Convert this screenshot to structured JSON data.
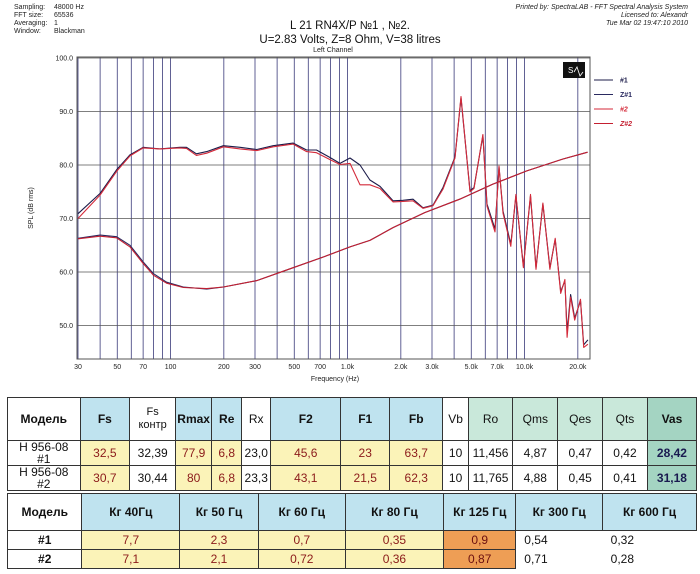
{
  "meta": {
    "rows": [
      {
        "key": "Sampling:",
        "value": "48000 Hz"
      },
      {
        "key": "FFT size:",
        "value": "65536"
      },
      {
        "key": "Averaging:",
        "value": "1"
      },
      {
        "key": "Window:",
        "value": "Blackman"
      }
    ]
  },
  "title": {
    "line1": "L 21 RN4X/P  №1 , №2.",
    "line2": "U=2.83 Volts,   Z=8 Ohm,    V=38 litres"
  },
  "printed": {
    "line1": "Printed by: SpectraLAB - FFT Spectral Analysis System",
    "line2": "Licensed to: Alexandr",
    "line3": "Tue Mar 02 19:47:10 2010"
  },
  "chart_data": {
    "type": "line",
    "title": "Left Channel",
    "xlabel": "Frequency (Hz)",
    "ylabel": "SPL (dB rms)",
    "xscale": "log",
    "xlim": [
      30,
      23000
    ],
    "ylim": [
      43.9,
      100
    ],
    "grid": true,
    "legend_placement": "right-outside-top",
    "yticks": [
      "100.0",
      "90.0",
      "80.0",
      "70.0",
      "60.0",
      "50.0"
    ],
    "ytick_values": [
      100,
      90,
      80,
      70,
      60,
      50
    ],
    "xticks": [
      {
        "v": 30,
        "label": "30"
      },
      {
        "v": 50,
        "label": "50"
      },
      {
        "v": 70,
        "label": "70"
      },
      {
        "v": 100,
        "label": "100"
      },
      {
        "v": 200,
        "label": "200"
      },
      {
        "v": 300,
        "label": "300"
      },
      {
        "v": 500,
        "label": "500"
      },
      {
        "v": 700,
        "label": "700"
      },
      {
        "v": 1000,
        "label": "1.0k"
      },
      {
        "v": 2000,
        "label": "2.0k"
      },
      {
        "v": 3000,
        "label": "3.0k"
      },
      {
        "v": 5000,
        "label": "5.0k"
      },
      {
        "v": 7000,
        "label": "7.0k"
      },
      {
        "v": 10000,
        "label": "10.0k"
      },
      {
        "v": 20000,
        "label": "20.0k"
      }
    ],
    "xgrid": [
      30,
      40,
      50,
      60,
      70,
      80,
      90,
      100,
      200,
      300,
      400,
      500,
      600,
      700,
      800,
      900,
      1000,
      2000,
      3000,
      4000,
      5000,
      6000,
      7000,
      8000,
      9000,
      10000,
      20000
    ],
    "series": [
      {
        "name": "#1",
        "color": "#1c1c4a",
        "points": [
          [
            30,
            70.9
          ],
          [
            40,
            74.7
          ],
          [
            49.6,
            79.1
          ],
          [
            59,
            81.9
          ],
          [
            70,
            83.3
          ],
          [
            87,
            83
          ],
          [
            113,
            83.3
          ],
          [
            123,
            83.3
          ],
          [
            140,
            82.1
          ],
          [
            160,
            82.5
          ],
          [
            199,
            83.6
          ],
          [
            247,
            83.3
          ],
          [
            307,
            82.9
          ],
          [
            380,
            83.6
          ],
          [
            493,
            84.1
          ],
          [
            587,
            82.8
          ],
          [
            668,
            82.8
          ],
          [
            796,
            81.4
          ],
          [
            906,
            80.3
          ],
          [
            1032,
            81.3
          ],
          [
            1176,
            80
          ],
          [
            1338,
            77.2
          ],
          [
            1525,
            76
          ],
          [
            1806,
            73.3
          ],
          [
            2058,
            73.4
          ],
          [
            2343,
            73.6
          ],
          [
            2668,
            72
          ],
          [
            3038,
            72.5
          ],
          [
            3460,
            75.8
          ],
          [
            4047,
            81.5
          ],
          [
            4377,
            92.5
          ],
          [
            4920,
            75.2
          ],
          [
            5180,
            75.8
          ],
          [
            5820,
            85.5
          ],
          [
            6138,
            72.7
          ],
          [
            6810,
            68
          ],
          [
            7170,
            79.6
          ],
          [
            7560,
            71.4
          ],
          [
            8360,
            65.2
          ],
          [
            8940,
            74.2
          ],
          [
            9850,
            61.1
          ],
          [
            10800,
            74.2
          ],
          [
            11600,
            60.8
          ],
          [
            12700,
            72.7
          ],
          [
            13900,
            60.8
          ],
          [
            14900,
            66.1
          ],
          [
            16000,
            56.4
          ],
          [
            16900,
            58.3
          ],
          [
            17400,
            48.8
          ],
          [
            18200,
            55.8
          ],
          [
            19200,
            51.4
          ],
          [
            20700,
            54.6
          ],
          [
            21600,
            46.4
          ],
          [
            22800,
            47.3
          ]
        ]
      },
      {
        "name": "Z#1",
        "color": "#2a2a60",
        "points": [
          [
            30,
            66.3
          ],
          [
            40,
            66.9
          ],
          [
            49.6,
            66.6
          ],
          [
            59,
            65
          ],
          [
            70,
            61.9
          ],
          [
            80,
            59.7
          ],
          [
            95,
            58.1
          ],
          [
            118,
            57.2
          ],
          [
            160,
            56.8
          ],
          [
            199,
            57.2
          ],
          [
            307,
            58.4
          ],
          [
            473,
            60.6
          ],
          [
            729,
            62.8
          ],
          [
            1032,
            64.7
          ],
          [
            1338,
            65.9
          ],
          [
            1806,
            68.3
          ],
          [
            2727,
            71.1
          ],
          [
            4300,
            73.6
          ],
          [
            6600,
            76.4
          ],
          [
            10300,
            78.9
          ],
          [
            16400,
            81.1
          ],
          [
            22700,
            82.4
          ]
        ]
      },
      {
        "name": "#2",
        "color": "#d42a3a",
        "points": [
          [
            30,
            70
          ],
          [
            40,
            74.4
          ],
          [
            49.6,
            78.8
          ],
          [
            59,
            81.7
          ],
          [
            70,
            83.2
          ],
          [
            87,
            83
          ],
          [
            113,
            83.2
          ],
          [
            123,
            83.1
          ],
          [
            140,
            81.8
          ],
          [
            160,
            82.2
          ],
          [
            199,
            83.4
          ],
          [
            247,
            83
          ],
          [
            307,
            82.7
          ],
          [
            380,
            83.4
          ],
          [
            493,
            83.9
          ],
          [
            587,
            82.5
          ],
          [
            668,
            82.3
          ],
          [
            796,
            81
          ],
          [
            906,
            80.1
          ],
          [
            1032,
            80.3
          ],
          [
            1176,
            76.3
          ],
          [
            1338,
            76.3
          ],
          [
            1525,
            75.6
          ],
          [
            1806,
            73.1
          ],
          [
            2058,
            73.2
          ],
          [
            2343,
            73.3
          ],
          [
            2668,
            71.9
          ],
          [
            3038,
            72.4
          ],
          [
            3460,
            75.5
          ],
          [
            4047,
            81.3
          ],
          [
            4377,
            92.8
          ],
          [
            4920,
            75
          ],
          [
            5180,
            75.6
          ],
          [
            5820,
            85.7
          ],
          [
            6138,
            72.3
          ],
          [
            6810,
            67.5
          ],
          [
            7170,
            79.8
          ],
          [
            7560,
            71
          ],
          [
            8360,
            64.8
          ],
          [
            8940,
            74.5
          ],
          [
            9850,
            60.8
          ],
          [
            10800,
            74.5
          ],
          [
            11600,
            60.5
          ],
          [
            12700,
            72.9
          ],
          [
            13900,
            60.5
          ],
          [
            14900,
            66.3
          ],
          [
            16000,
            56
          ],
          [
            16900,
            58.6
          ],
          [
            17400,
            47.8
          ],
          [
            18200,
            55.3
          ],
          [
            19200,
            51
          ],
          [
            20700,
            54.9
          ],
          [
            21600,
            45.9
          ],
          [
            22800,
            46.5
          ]
        ]
      },
      {
        "name": "Z#2",
        "color": "#c41f30",
        "points": [
          [
            30,
            66.2
          ],
          [
            40,
            66.7
          ],
          [
            49.6,
            66.4
          ],
          [
            59,
            64.7
          ],
          [
            70,
            61.6
          ],
          [
            80,
            59.4
          ],
          [
            95,
            57.9
          ],
          [
            118,
            57.1
          ],
          [
            160,
            56.9
          ],
          [
            199,
            57.2
          ],
          [
            307,
            58.4
          ],
          [
            473,
            60.6
          ],
          [
            729,
            62.8
          ],
          [
            1032,
            64.7
          ],
          [
            1338,
            65.9
          ],
          [
            1806,
            68.3
          ],
          [
            2727,
            71.1
          ],
          [
            4300,
            73.6
          ],
          [
            6600,
            76.4
          ],
          [
            10300,
            78.9
          ],
          [
            16400,
            81.1
          ],
          [
            22700,
            82.4
          ]
        ]
      }
    ]
  },
  "table1": {
    "header": [
      "Модель",
      "Fs",
      "Fs\nконтр",
      "Rmax",
      "Re",
      "Rx",
      "F2",
      "F1",
      "Fb",
      "Vb",
      "Ro",
      "Qms",
      "Qes",
      "Qts",
      "Vas"
    ],
    "rows": [
      [
        "H 956-08\n#1",
        "32,5",
        "32,39",
        "77,9",
        "6,8",
        "23,0",
        "45,6",
        "23",
        "63,7",
        "10",
        "11,456",
        "4,87",
        "0,47",
        "0,42",
        "28,42"
      ],
      [
        "H 956-08\n#2",
        "30,7",
        "30,44",
        "80",
        "6,8",
        "23,3",
        "43,1",
        "21,5",
        "62,3",
        "10",
        "11,765",
        "4,88",
        "0,45",
        "0,41",
        "31,18"
      ]
    ]
  },
  "table2": {
    "header": [
      "Модель",
      "Кг 40Гц",
      "Кг 50 Гц",
      "Кг 60 Гц",
      "Кг 80 Гц",
      "Кг 125 Гц",
      "Кг 300 Гц",
      "Кг 600 Гц"
    ],
    "rows": [
      [
        "#1",
        "7,7",
        "2,3",
        "0,7",
        "0,35",
        "0,9",
        "0,54",
        "0,32"
      ],
      [
        "#2",
        "7,1",
        "2,1",
        "0,72",
        "0,36",
        "0,87",
        "0,71",
        "0,28"
      ]
    ]
  }
}
